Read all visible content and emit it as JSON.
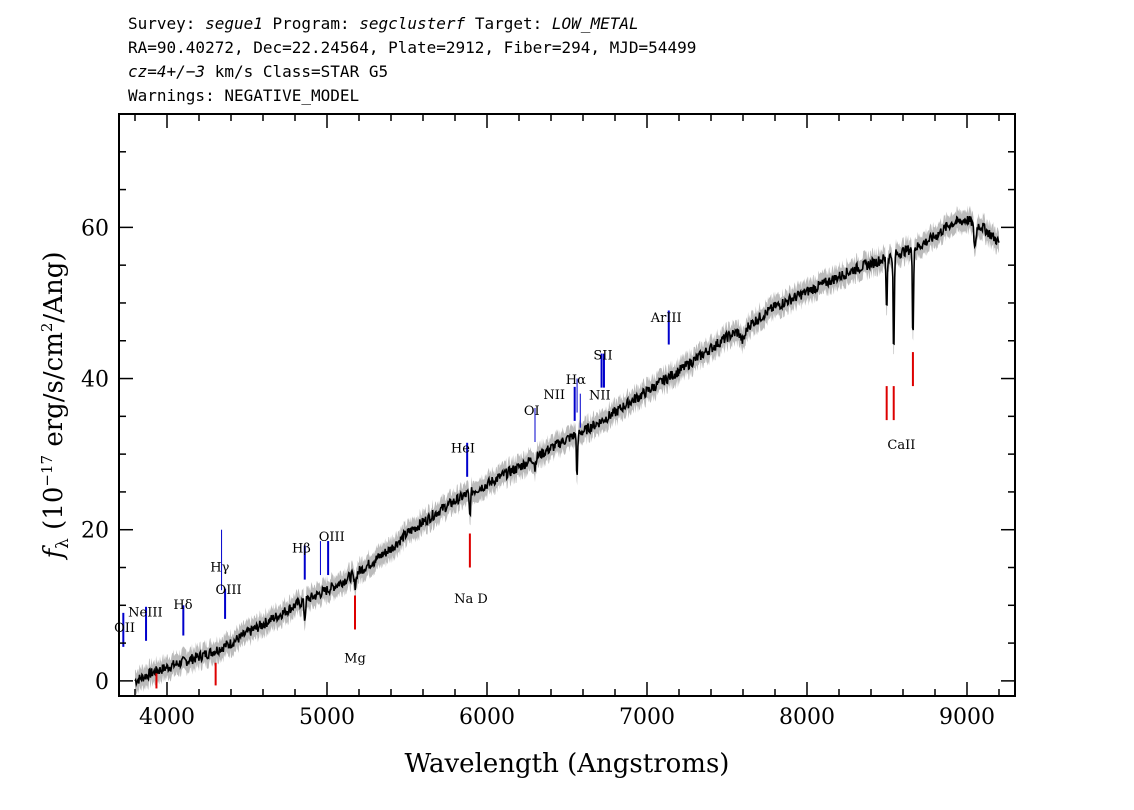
{
  "header": {
    "survey_label": "Survey:",
    "survey": "segue1",
    "program_label": "Program:",
    "program": "segclusterf",
    "target_label": "Target:",
    "target": "LOW_METAL",
    "line2": "RA=90.40272, Dec=22.24564, Plate=2912, Fiber=294, MJD=54499",
    "cz": "cz=4+/−3",
    "cz_unit": "km/s Class=STAR G5",
    "warnings": "Warnings: NEGATIVE_MODEL"
  },
  "chart_data": {
    "type": "line",
    "xlabel": "Wavelength (Angstroms)",
    "ylabel": "f_λ (10^-17 erg/s/cm^2/Ang)",
    "xlim": [
      3700,
      9300
    ],
    "ylim": [
      -2,
      75
    ],
    "xticks": [
      4000,
      5000,
      6000,
      7000,
      8000,
      9000
    ],
    "yticks": [
      0,
      20,
      40,
      60
    ],
    "colors": {
      "flux": "#000000",
      "error": "#bbbbbb",
      "emission": "#0000cc",
      "absorption": "#dd0000"
    },
    "series": [
      {
        "x": [
          3800,
          3850,
          3900,
          4000,
          4100,
          4200,
          4300,
          4400,
          4500,
          4600,
          4700,
          4800,
          4900,
          5000,
          5100,
          5200,
          5300,
          5400,
          5500,
          5600,
          5700,
          5800,
          5900,
          6000,
          6100,
          6200,
          6300,
          6400,
          6500,
          6600,
          6700,
          6800,
          6900,
          7000,
          7100,
          7200,
          7300,
          7400,
          7500,
          7600,
          7700,
          7800,
          7900,
          8000,
          8100,
          8200,
          8300,
          8400,
          8500,
          8600,
          8700,
          8800,
          8900,
          9000,
          9100,
          9200
        ],
        "y": [
          0,
          0.5,
          1,
          1.8,
          2.5,
          3.2,
          4,
          5,
          6.3,
          7.5,
          8.7,
          10,
          11,
          12,
          13.2,
          14.5,
          16,
          17.5,
          19.5,
          21,
          22.5,
          23.8,
          25,
          26,
          27.2,
          28.3,
          29.5,
          30.8,
          32,
          33,
          34.2,
          35.5,
          37,
          38.3,
          39.7,
          41,
          42.5,
          44,
          45.5,
          46.5,
          48,
          49.5,
          50.5,
          51.5,
          52.5,
          53.5,
          54.5,
          55.2,
          56,
          56.8,
          57.5,
          58.8,
          60.5,
          61,
          60,
          58
        ]
      }
    ],
    "lines": [
      {
        "label": "OII",
        "x": 3727,
        "kind": "emission",
        "y": 4.5,
        "h": 4.5
      },
      {
        "label": "NeIII",
        "x": 3869,
        "kind": "emission",
        "y": 5.3,
        "h": 4.5
      },
      {
        "label": "Hδ",
        "x": 4102,
        "kind": "emission",
        "y": 6.0,
        "h": 4.0
      },
      {
        "label": "Hγ",
        "x": 4341,
        "kind": "emission",
        "y": 12.0,
        "h": 8.0,
        "thin": true
      },
      {
        "label": "OIII",
        "x": 4363,
        "kind": "emission",
        "y": 8.2,
        "h": 4.0
      },
      {
        "label": "Hβ",
        "x": 4861,
        "kind": "emission",
        "y": 13.4,
        "h": 4.5
      },
      {
        "label": "OIII",
        "x": 4959,
        "kind": "emission",
        "y": 14.0,
        "h": 4.5,
        "thin": true
      },
      {
        "label": "",
        "x": 5007,
        "kind": "emission",
        "y": 14.0,
        "h": 4.5
      },
      {
        "label": "HeI",
        "x": 5876,
        "kind": "emission",
        "y": 27.0,
        "h": 4.5
      },
      {
        "label": "OI",
        "x": 6300,
        "kind": "emission",
        "y": 31.6,
        "h": 4.5,
        "thin": true
      },
      {
        "label": "NII",
        "x": 6548,
        "kind": "emission",
        "y": 34.4,
        "h": 4.5
      },
      {
        "label": "Hα",
        "x": 6563,
        "kind": "emission",
        "y": 35.5,
        "h": 4.5,
        "thin": true
      },
      {
        "label": "NII",
        "x": 6583,
        "kind": "emission",
        "y": 33.5,
        "h": 4.5,
        "thin": true
      },
      {
        "label": "SII",
        "x": 6716,
        "kind": "emission",
        "y": 38.8,
        "h": 4.5
      },
      {
        "label": "",
        "x": 6731,
        "kind": "emission",
        "y": 38.8,
        "h": 4.5
      },
      {
        "label": "ArIII",
        "x": 7136,
        "kind": "emission",
        "y": 44.5,
        "h": 4.5
      },
      {
        "label": "CaII",
        "x": 8498,
        "kind": "absorption",
        "y": 34.5,
        "h": 4.5
      },
      {
        "label": "",
        "x": 8542,
        "kind": "absorption",
        "y": 34.5,
        "h": 4.5
      },
      {
        "label": "",
        "x": 8662,
        "kind": "absorption",
        "y": 39.0,
        "h": 4.5
      },
      {
        "label": "Na D",
        "x": 5893,
        "kind": "absorption",
        "y": 15.0,
        "h": 4.5
      },
      {
        "label": "Mg",
        "x": 5175,
        "kind": "absorption",
        "y": 6.8,
        "h": 4.5
      },
      {
        "label": "",
        "x": 4304,
        "kind": "absorption",
        "y": -0.6,
        "h": 3.0
      },
      {
        "label": "",
        "x": 3934,
        "kind": "absorption",
        "y": -1.0,
        "h": 2.0
      }
    ],
    "line_labels": [
      {
        "text": "OII",
        "x": 3735,
        "y": 6.5
      },
      {
        "text": "NeIII",
        "x": 3865,
        "y": 8.5
      },
      {
        "text": "Hδ",
        "x": 4100,
        "y": 9.5
      },
      {
        "text": "Hγ",
        "x": 4330,
        "y": 14.5
      },
      {
        "text": "OIII",
        "x": 4385,
        "y": 11.5
      },
      {
        "text": "Hβ",
        "x": 4840,
        "y": 17.0
      },
      {
        "text": "OIII",
        "x": 5030,
        "y": 18.5
      },
      {
        "text": "HeI",
        "x": 5850,
        "y": 30.2
      },
      {
        "text": "OI",
        "x": 6280,
        "y": 35.2
      },
      {
        "text": "NII",
        "x": 6420,
        "y": 37.3
      },
      {
        "text": "Hα",
        "x": 6555,
        "y": 39.3
      },
      {
        "text": "NII",
        "x": 6705,
        "y": 37.2
      },
      {
        "text": "SII",
        "x": 6725,
        "y": 42.5
      },
      {
        "text": "ArIII",
        "x": 7120,
        "y": 47.5
      },
      {
        "text": "CaII",
        "x": 8590,
        "y": 30.7
      },
      {
        "text": "Na D",
        "x": 5900,
        "y": 10.3
      },
      {
        "text": "Mg",
        "x": 5175,
        "y": 2.4
      }
    ]
  }
}
